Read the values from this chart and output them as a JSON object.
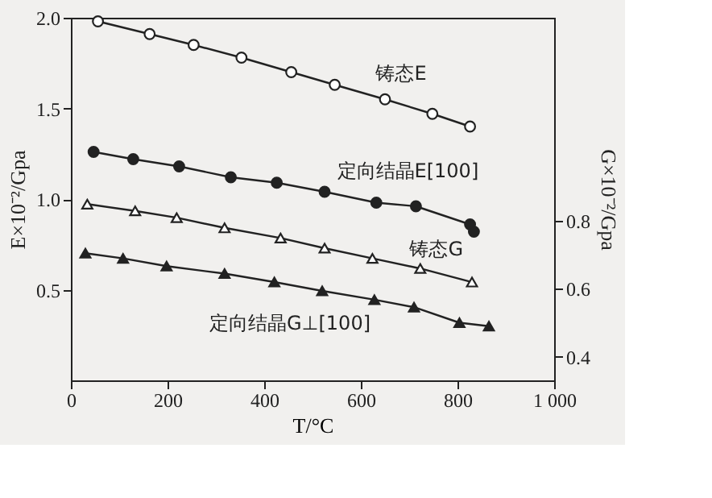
{
  "chart_data": {
    "type": "line",
    "xlabel": "T/°C",
    "ylabel": "E×10⁻²/Gpa",
    "y2label": "G×10⁻²/Gpa",
    "xlim": [
      0,
      1000
    ],
    "xticks": [
      0,
      200,
      400,
      600,
      800,
      {
        "value": 1000,
        "label": "1 000"
      }
    ],
    "ylim": [
      0,
      2.0
    ],
    "yticks": [
      {
        "value": 0.5,
        "label": "0.5"
      },
      {
        "value": 1,
        "label": "1.0"
      },
      {
        "value": 1.5,
        "label": "1.5"
      },
      {
        "value": 2,
        "label": "2.0"
      }
    ],
    "y2lim": [
      0.33,
      1.4
    ],
    "y2ticks": [
      {
        "value": 0.4,
        "label": "0.4"
      },
      {
        "value": 0.6,
        "label": "0.6"
      },
      {
        "value": 0.8,
        "label": "0.8"
      }
    ],
    "grid": false,
    "series": [
      {
        "name": "铸态E",
        "color": "#222222",
        "marker": "circle",
        "x": [
          56,
          163,
          254,
          353,
          456,
          546,
          650,
          748,
          826
        ],
        "values": [
          1.98,
          1.91,
          1.85,
          1.78,
          1.7,
          1.63,
          1.55,
          1.47,
          1.4
        ]
      },
      {
        "name": "定向结晶E[100]",
        "color": "#222222",
        "marker": "circle",
        "x": [
          47,
          129,
          224,
          331,
          426,
          525,
          632,
          714,
          826,
          834
        ],
        "values": [
          1.26,
          1.22,
          1.18,
          1.12,
          1.09,
          1.04,
          0.98,
          0.96,
          0.86,
          0.82
        ]
      },
      {
        "name": "铸态G",
        "color": "#222222",
        "marker": "triangle",
        "axis": "y2",
        "x": [
          34,
          133,
          219,
          318,
          434,
          525,
          624,
          723,
          830
        ],
        "values": [
          0.85,
          0.83,
          0.81,
          0.78,
          0.75,
          0.72,
          0.69,
          0.66,
          0.62
        ]
      },
      {
        "name": "定向结晶G⊥[100]",
        "color": "#222222",
        "marker": "triangle",
        "axis": "y2",
        "x": [
          30,
          108,
          198,
          318,
          421,
          520,
          628,
          710,
          804,
          865
        ],
        "values": [
          0.705,
          0.69,
          0.667,
          0.645,
          0.62,
          0.594,
          0.568,
          0.546,
          0.5,
          0.49
        ]
      }
    ]
  }
}
